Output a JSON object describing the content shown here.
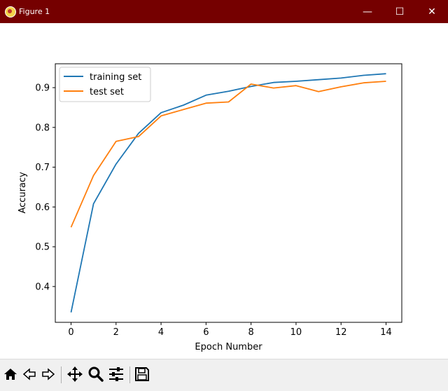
{
  "window": {
    "title": "Figure 1",
    "minimize_glyph": "—",
    "maximize_glyph": "☐",
    "close_glyph": "✕"
  },
  "toolbar": {
    "buttons": [
      "home-icon",
      "back-arrow-icon",
      "forward-arrow-icon",
      "pan-move-icon",
      "zoom-magnifier-icon",
      "configure-subplots-icon",
      "save-floppy-icon"
    ]
  },
  "colors": {
    "titlebar": "#750000",
    "training": "#1f77b4",
    "test": "#ff7f0e"
  },
  "chart_data": {
    "type": "line",
    "xlabel": "Epoch Number",
    "ylabel": "Accuracy",
    "xlim": [
      -0.7,
      14.7
    ],
    "ylim": [
      0.31,
      0.96
    ],
    "xticks": [
      "0",
      "2",
      "4",
      "6",
      "8",
      "10",
      "12",
      "14"
    ],
    "yticks": [
      "0.4",
      "0.5",
      "0.6",
      "0.7",
      "0.8",
      "0.9"
    ],
    "legend_position": "upper-left",
    "grid": false,
    "x": [
      0,
      1,
      2,
      3,
      4,
      5,
      6,
      7,
      8,
      9,
      10,
      11,
      12,
      13,
      14
    ],
    "series": [
      {
        "name": "training set",
        "color": "#1f77b4",
        "values": [
          0.335,
          0.608,
          0.708,
          0.785,
          0.837,
          0.856,
          0.881,
          0.891,
          0.903,
          0.913,
          0.916,
          0.92,
          0.924,
          0.931,
          0.935
        ]
      },
      {
        "name": "test set",
        "color": "#ff7f0e",
        "values": [
          0.549,
          0.679,
          0.765,
          0.777,
          0.829,
          0.845,
          0.861,
          0.864,
          0.909,
          0.899,
          0.905,
          0.89,
          0.902,
          0.912,
          0.916
        ]
      }
    ]
  }
}
